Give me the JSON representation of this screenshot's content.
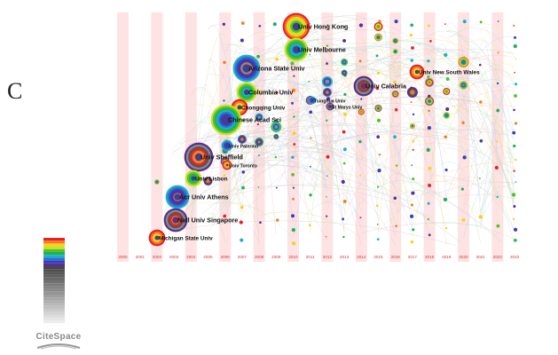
{
  "panel_label": "C",
  "logo_text": "CiteSpace",
  "years": [
    "2000",
    "2001",
    "2002",
    "2003",
    "2004",
    "2005",
    "2006",
    "2007",
    "2008",
    "2009",
    "2010",
    "2011",
    "2012",
    "2013",
    "2014",
    "2015",
    "2016",
    "2017",
    "2018",
    "2019",
    "2020",
    "2021",
    "2022",
    "2023"
  ],
  "institutions": [
    {
      "label": "Univ Hong Kong",
      "year": 2010
    },
    {
      "label": "Univ Melbourne",
      "year": 2010
    },
    {
      "label": "Arizona State Univ",
      "year": 2007
    },
    {
      "label": "Univ Calabria",
      "year": 2014
    },
    {
      "label": "Univ New South Wales",
      "year": 2017
    },
    {
      "label": "Columbia Univ",
      "year": 2007
    },
    {
      "label": "Tsinghua Univ",
      "year": 2011
    },
    {
      "label": "St Marys Univ",
      "year": 2012
    },
    {
      "label": "Chongqing Univ",
      "year": 2007
    },
    {
      "label": "Chinese Acad Sci",
      "year": 2006
    },
    {
      "label": "Univ Palermo",
      "year": 2006
    },
    {
      "label": "Univ Sheffield",
      "year": 2005
    },
    {
      "label": "Univ Toronto",
      "year": 2006
    },
    {
      "label": "Univ Lisbon",
      "year": 2005
    },
    {
      "label": "Acr Univ Athens",
      "year": 2004
    },
    {
      "label": "Natl Univ Singapore",
      "year": 2004
    },
    {
      "label": "Michigan State Univ",
      "year": 2002
    }
  ],
  "colors": {
    "stripe": "#fde3e3",
    "year_label": "#e03030",
    "ring_palette": [
      "#e8202a",
      "#f47a20",
      "#f6d31b",
      "#c7e22a",
      "#53c229",
      "#1fb05b",
      "#19b3c8",
      "#2f6fd6",
      "#3a3fb8",
      "#5b2d8e",
      "#8a8a8a",
      "#555555"
    ]
  }
}
